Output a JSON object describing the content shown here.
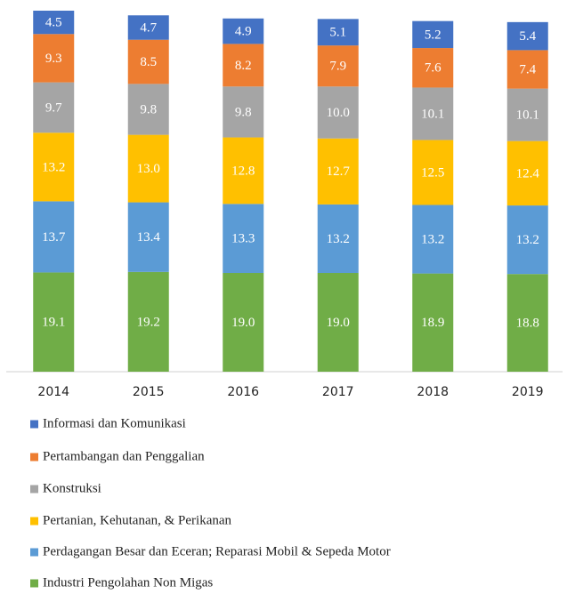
{
  "chart_data": {
    "type": "stacked_bar",
    "categories": [
      "2014",
      "2015",
      "2016",
      "2017",
      "2018",
      "2019"
    ],
    "series": [
      {
        "name": "Informasi dan Komunikasi",
        "color": "#4472c4",
        "values": [
          4.5,
          4.7,
          4.9,
          5.1,
          5.2,
          5.4
        ],
        "value_labels": [
          "4.5",
          "4.7",
          "4.9",
          "5.1",
          "5.2",
          "5.4"
        ]
      },
      {
        "name": "Pertambangan dan Penggalian",
        "color": "#ed7d31",
        "values": [
          9.3,
          8.5,
          8.2,
          7.9,
          7.6,
          7.4
        ],
        "value_labels": [
          "9.3",
          "8.5",
          "8.2",
          "7.9",
          "7.6",
          "7.4"
        ]
      },
      {
        "name": "Konstruksi",
        "color": "#a5a5a5",
        "values": [
          9.7,
          9.8,
          9.8,
          10.0,
          10.1,
          10.1
        ],
        "value_labels": [
          "9.7",
          "9.8",
          "9.8",
          "10.0",
          "10.1",
          "10.1"
        ]
      },
      {
        "name": "Pertanian, Kehutanan, & Perikanan",
        "color": "#ffc000",
        "values": [
          13.2,
          13.0,
          12.8,
          12.7,
          12.5,
          12.4
        ],
        "value_labels": [
          "13.2",
          "13.0",
          "12.8",
          "12.7",
          "12.5",
          "12.4"
        ]
      },
      {
        "name": "Perdagangan Besar dan Eceran; Reparasi Mobil & Sepeda Motor",
        "color": "#5b9bd5",
        "values": [
          13.7,
          13.4,
          13.3,
          13.2,
          13.2,
          13.2
        ],
        "value_labels": [
          "13.7",
          "13.4",
          "13.3",
          "13.2",
          "13.2",
          "13.2"
        ]
      },
      {
        "name": "Industri Pengolahan Non Migas",
        "color": "#70ad47",
        "values": [
          19.1,
          19.2,
          19.0,
          19.0,
          18.9,
          18.8
        ],
        "value_labels": [
          "19.1",
          "19.2",
          "19.0",
          "19.0",
          "18.9",
          "18.8"
        ]
      }
    ],
    "legend": "bottom"
  }
}
